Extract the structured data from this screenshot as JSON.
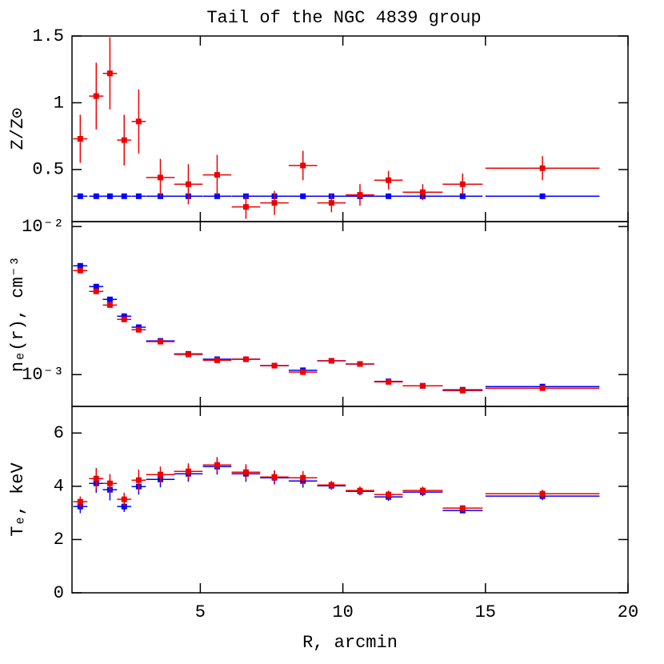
{
  "chart_data": [
    {
      "type": "errorbar",
      "title": "Tail of the NGC 4839 group",
      "ylabel": "Z/Z⊙",
      "xlim": [
        0.5,
        20
      ],
      "ylim": [
        0.11,
        1.5
      ],
      "yticks": [
        0.5,
        1,
        1.5
      ],
      "x": [
        0.79,
        1.35,
        1.83,
        2.33,
        2.84,
        3.6,
        4.58,
        5.59,
        6.6,
        7.6,
        8.6,
        9.6,
        10.6,
        11.6,
        12.8,
        14.2,
        17.0
      ],
      "xerr": [
        0.25,
        0.25,
        0.25,
        0.25,
        0.25,
        0.5,
        0.5,
        0.5,
        0.5,
        0.5,
        0.5,
        0.5,
        0.5,
        0.5,
        0.7,
        0.7,
        2.0
      ],
      "series": [
        {
          "color": "#0000ff",
          "values": [
            0.3,
            0.3,
            0.3,
            0.3,
            0.3,
            0.3,
            0.3,
            0.3,
            0.3,
            0.3,
            0.3,
            0.3,
            0.3,
            0.3,
            0.3,
            0.3,
            0.3
          ]
        },
        {
          "color": "#ee0000",
          "values": [
            0.73,
            1.05,
            1.22,
            0.72,
            0.86,
            0.44,
            0.39,
            0.46,
            0.22,
            0.25,
            0.53,
            0.25,
            0.31,
            0.42,
            0.33,
            0.39,
            0.51
          ],
          "err": [
            0.18,
            0.25,
            0.27,
            0.19,
            0.24,
            0.14,
            0.15,
            0.15,
            0.09,
            0.09,
            0.11,
            0.07,
            0.08,
            0.07,
            0.06,
            0.08,
            0.09
          ]
        }
      ]
    },
    {
      "type": "errorbar",
      "ylabel": "nₑ(r), cm⁻³",
      "log_y": true,
      "xlim": [
        0.5,
        20
      ],
      "ylim": [
        0.00061,
        0.0108
      ],
      "yticks": [
        {
          "value": 0.01,
          "label": "10⁻²"
        },
        {
          "value": 0.001,
          "label": "10⁻³"
        }
      ],
      "x": [
        0.79,
        1.35,
        1.83,
        2.33,
        2.84,
        3.6,
        4.58,
        5.59,
        6.6,
        7.6,
        8.6,
        9.6,
        10.6,
        11.6,
        12.8,
        14.2,
        17.0
      ],
      "xerr": [
        0.25,
        0.25,
        0.25,
        0.25,
        0.25,
        0.5,
        0.5,
        0.5,
        0.5,
        0.5,
        0.5,
        0.5,
        0.5,
        0.5,
        0.7,
        0.7,
        2.0
      ],
      "series": [
        {
          "color": "#0000ff",
          "values": [
            0.00543,
            0.00393,
            0.00322,
            0.00248,
            0.00209,
            0.00169,
            0.00138,
            0.00127,
            0.00127,
            0.00115,
            0.00107,
            0.00124,
            0.00118,
            0.0009,
            0.00084,
            0.00079,
            0.00083
          ]
        },
        {
          "color": "#ee0000",
          "values": [
            0.00504,
            0.00365,
            0.00295,
            0.00236,
            0.00201,
            0.00167,
            0.00137,
            0.00125,
            0.00127,
            0.00115,
            0.00104,
            0.00124,
            0.00118,
            0.000893,
            0.00084,
            0.00078,
            0.00081
          ]
        }
      ]
    },
    {
      "type": "errorbar",
      "ylabel": "Tₑ, keV",
      "xlabel": "R, arcmin",
      "xlim": [
        0.5,
        20
      ],
      "ylim": [
        0,
        7
      ],
      "yticks": [
        0,
        2,
        4,
        6
      ],
      "xticks": [
        5,
        10,
        15,
        20
      ],
      "x": [
        0.79,
        1.35,
        1.83,
        2.33,
        2.84,
        3.6,
        4.58,
        5.59,
        6.6,
        7.6,
        8.6,
        9.6,
        10.6,
        11.6,
        12.8,
        14.2,
        17.0
      ],
      "xerr": [
        0.25,
        0.25,
        0.25,
        0.25,
        0.25,
        0.5,
        0.5,
        0.5,
        0.5,
        0.5,
        0.5,
        0.5,
        0.5,
        0.5,
        0.7,
        0.7,
        2.0
      ],
      "series": [
        {
          "color": "#0000ff",
          "values": [
            3.24,
            4.11,
            3.87,
            3.24,
            3.99,
            4.26,
            4.47,
            4.74,
            4.47,
            4.32,
            4.2,
            4.02,
            3.81,
            3.6,
            3.78,
            3.09,
            3.63
          ],
          "err": [
            0.25,
            0.35,
            0.4,
            0.2,
            0.3,
            0.3,
            0.3,
            0.3,
            0.3,
            0.25,
            0.25,
            0.15,
            0.15,
            0.15,
            0.15,
            0.1,
            0.15
          ]
        },
        {
          "color": "#ee0000",
          "values": [
            3.42,
            4.29,
            4.11,
            3.51,
            4.23,
            4.44,
            4.56,
            4.8,
            4.53,
            4.35,
            4.32,
            4.05,
            3.84,
            3.69,
            3.84,
            3.18,
            3.72
          ],
          "err": [
            0.2,
            0.4,
            0.35,
            0.25,
            0.4,
            0.3,
            0.3,
            0.3,
            0.3,
            0.25,
            0.25,
            0.15,
            0.15,
            0.15,
            0.15,
            0.1,
            0.15
          ]
        }
      ]
    }
  ]
}
